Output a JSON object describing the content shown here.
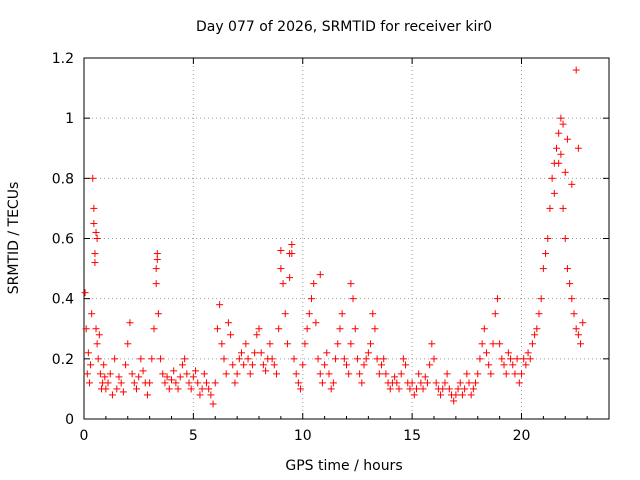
{
  "chart_data": {
    "type": "scatter",
    "title": "Day 077 of 2026, SRMTID for receiver kir0",
    "xlabel": "GPS time / hours",
    "ylabel": "SRMTID / TECUs",
    "xlim": [
      0,
      24
    ],
    "ylim": [
      0,
      1.2
    ],
    "xticks": [
      0,
      5,
      10,
      15,
      20
    ],
    "xtick_labels": [
      "0",
      "5",
      "10",
      "15",
      "20"
    ],
    "yticks": [
      0,
      0.2,
      0.4,
      0.6,
      0.8,
      1,
      1.2
    ],
    "ytick_labels": [
      "0",
      "0.2",
      "0.4",
      "0.6",
      "0.8",
      "1",
      "1.2"
    ],
    "grid": true,
    "marker": "plus",
    "color": "#ff0000",
    "series": [
      {
        "name": "SRMTID",
        "x": [
          0.05,
          0.1,
          0.15,
          0.2,
          0.25,
          0.3,
          0.35,
          0.4,
          0.45,
          0.5,
          0.55,
          0.6,
          0.65,
          0.7,
          0.75,
          0.8,
          0.85,
          0.9,
          0.95,
          1.0,
          1.1,
          1.2,
          1.3,
          1.4,
          1.5,
          1.6,
          1.7,
          1.8,
          1.9,
          2.0,
          2.1,
          2.2,
          2.3,
          2.4,
          2.5,
          2.6,
          2.7,
          2.8,
          2.9,
          3.0,
          3.1,
          3.2,
          3.3,
          3.35,
          3.4,
          3.5,
          3.6,
          3.7,
          3.8,
          3.9,
          4.0,
          4.1,
          4.2,
          4.3,
          4.4,
          4.5,
          4.6,
          4.7,
          4.8,
          4.9,
          5.0,
          5.1,
          5.2,
          5.3,
          5.4,
          5.5,
          5.6,
          5.7,
          5.8,
          5.9,
          6.0,
          6.1,
          6.2,
          6.3,
          6.4,
          6.5,
          6.6,
          6.7,
          6.8,
          6.9,
          7.0,
          7.1,
          7.2,
          7.3,
          7.4,
          7.5,
          7.6,
          7.7,
          7.8,
          7.9,
          8.0,
          8.1,
          8.2,
          8.3,
          8.4,
          8.5,
          8.6,
          8.7,
          8.8,
          8.9,
          9.0,
          9.1,
          9.2,
          9.3,
          9.4,
          9.5,
          9.6,
          9.7,
          9.8,
          9.9,
          10.0,
          10.1,
          10.2,
          10.3,
          10.4,
          10.5,
          10.6,
          10.7,
          10.8,
          10.9,
          11.0,
          11.1,
          11.2,
          11.3,
          11.4,
          11.5,
          11.6,
          11.7,
          11.8,
          11.9,
          12.0,
          12.1,
          12.2,
          12.3,
          12.4,
          12.5,
          12.6,
          12.7,
          12.8,
          12.9,
          13.0,
          13.1,
          13.2,
          13.3,
          13.4,
          13.5,
          13.6,
          13.7,
          13.8,
          13.9,
          14.0,
          14.1,
          14.2,
          14.3,
          14.4,
          14.5,
          14.6,
          14.7,
          14.8,
          14.9,
          15.0,
          15.1,
          15.2,
          15.3,
          15.4,
          15.5,
          15.6,
          15.7,
          15.8,
          15.9,
          16.0,
          16.1,
          16.2,
          16.3,
          16.4,
          16.5,
          16.6,
          16.7,
          16.8,
          16.9,
          17.0,
          17.1,
          17.2,
          17.3,
          17.4,
          17.5,
          17.6,
          17.7,
          17.8,
          17.9,
          18.0,
          18.1,
          18.2,
          18.3,
          18.4,
          18.5,
          18.6,
          18.7,
          18.8,
          18.9,
          19.0,
          19.1,
          19.2,
          19.3,
          19.4,
          19.5,
          19.6,
          19.7,
          19.8,
          19.9,
          20.0,
          20.1,
          20.2,
          20.3,
          20.4,
          20.5,
          20.6,
          20.7,
          20.8,
          20.9,
          21.0,
          21.1,
          21.2,
          21.3,
          21.4,
          21.5,
          21.6,
          21.7,
          21.8,
          21.9,
          22.0,
          22.1,
          22.2,
          22.3,
          22.4,
          22.5,
          22.6,
          22.7,
          22.8,
          0.45,
          0.5,
          0.55,
          0.6,
          3.3,
          3.35,
          9.0,
          9.4,
          9.5,
          10.8,
          12.2,
          21.9,
          22.1,
          22.5,
          22.6,
          21.5,
          21.7,
          21.8,
          22.0,
          22.3
        ],
        "y": [
          0.42,
          0.3,
          0.15,
          0.22,
          0.12,
          0.18,
          0.35,
          0.8,
          0.65,
          0.55,
          0.3,
          0.25,
          0.2,
          0.28,
          0.15,
          0.1,
          0.12,
          0.18,
          0.14,
          0.1,
          0.12,
          0.15,
          0.08,
          0.2,
          0.1,
          0.14,
          0.12,
          0.09,
          0.18,
          0.25,
          0.32,
          0.15,
          0.12,
          0.1,
          0.14,
          0.2,
          0.16,
          0.12,
          0.08,
          0.12,
          0.2,
          0.3,
          0.45,
          0.55,
          0.35,
          0.2,
          0.15,
          0.12,
          0.14,
          0.1,
          0.13,
          0.16,
          0.12,
          0.1,
          0.14,
          0.18,
          0.2,
          0.15,
          0.12,
          0.1,
          0.14,
          0.16,
          0.12,
          0.08,
          0.1,
          0.15,
          0.12,
          0.1,
          0.08,
          0.05,
          0.12,
          0.3,
          0.38,
          0.25,
          0.2,
          0.15,
          0.32,
          0.28,
          0.18,
          0.12,
          0.15,
          0.2,
          0.22,
          0.18,
          0.25,
          0.2,
          0.15,
          0.18,
          0.22,
          0.28,
          0.3,
          0.22,
          0.18,
          0.16,
          0.2,
          0.25,
          0.2,
          0.18,
          0.15,
          0.3,
          0.5,
          0.45,
          0.35,
          0.25,
          0.55,
          0.58,
          0.2,
          0.15,
          0.12,
          0.1,
          0.18,
          0.25,
          0.3,
          0.35,
          0.4,
          0.45,
          0.32,
          0.2,
          0.15,
          0.12,
          0.18,
          0.22,
          0.15,
          0.1,
          0.12,
          0.2,
          0.25,
          0.3,
          0.35,
          0.2,
          0.18,
          0.15,
          0.25,
          0.4,
          0.3,
          0.2,
          0.15,
          0.12,
          0.18,
          0.2,
          0.22,
          0.25,
          0.35,
          0.3,
          0.2,
          0.15,
          0.18,
          0.2,
          0.15,
          0.12,
          0.1,
          0.12,
          0.14,
          0.12,
          0.1,
          0.15,
          0.2,
          0.18,
          0.12,
          0.1,
          0.12,
          0.08,
          0.1,
          0.15,
          0.12,
          0.1,
          0.14,
          0.12,
          0.18,
          0.25,
          0.2,
          0.12,
          0.1,
          0.08,
          0.1,
          0.12,
          0.15,
          0.1,
          0.08,
          0.06,
          0.08,
          0.1,
          0.12,
          0.08,
          0.1,
          0.15,
          0.12,
          0.08,
          0.1,
          0.12,
          0.15,
          0.2,
          0.25,
          0.3,
          0.22,
          0.18,
          0.15,
          0.25,
          0.35,
          0.4,
          0.25,
          0.2,
          0.18,
          0.15,
          0.22,
          0.2,
          0.18,
          0.15,
          0.2,
          0.12,
          0.15,
          0.2,
          0.18,
          0.22,
          0.2,
          0.25,
          0.28,
          0.3,
          0.35,
          0.4,
          0.5,
          0.55,
          0.6,
          0.7,
          0.8,
          0.85,
          0.9,
          0.95,
          1.0,
          0.7,
          0.6,
          0.5,
          0.45,
          0.4,
          0.35,
          0.3,
          0.28,
          0.25,
          0.32,
          0.7,
          0.52,
          0.62,
          0.6,
          0.5,
          0.53,
          0.56,
          0.47,
          0.55,
          0.48,
          0.45,
          0.98,
          0.93,
          1.16,
          0.9,
          0.75,
          0.85,
          0.88,
          0.82,
          0.78
        ]
      }
    ]
  }
}
